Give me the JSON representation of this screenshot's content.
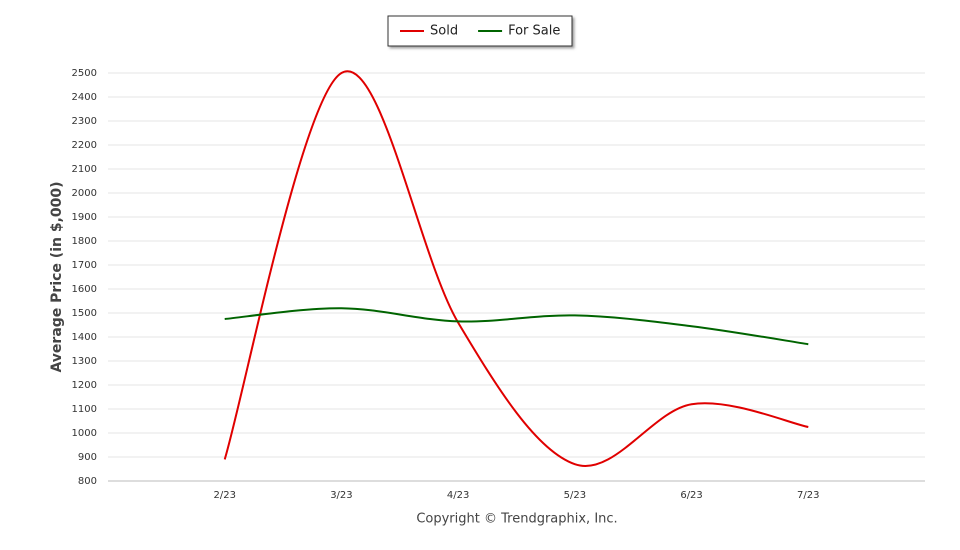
{
  "chart_data": {
    "type": "line",
    "y_label": "Average Price (in $,000)",
    "source": "Copyright © Trendgraphix, Inc.",
    "categories": [
      null,
      "2/23",
      "3/23",
      "4/23",
      "5/23",
      "6/23",
      "7/23",
      null
    ],
    "series": [
      {
        "name": "Sold",
        "color": "#e00000",
        "values": [
          null,
          890,
          2500,
          1460,
          870,
          1120,
          1025,
          null
        ]
      },
      {
        "name": "For Sale",
        "color": "#006400",
        "values": [
          null,
          1475,
          1520,
          1465,
          1490,
          1445,
          1370,
          null
        ]
      }
    ],
    "ylim": [
      800,
      2500
    ],
    "yticks": [
      800,
      900,
      1000,
      1100,
      1200,
      1300,
      1400,
      1500,
      1600,
      1700,
      1800,
      1900,
      2000,
      2100,
      2200,
      2300,
      2400,
      2500
    ],
    "grid": true,
    "legend": "top"
  }
}
